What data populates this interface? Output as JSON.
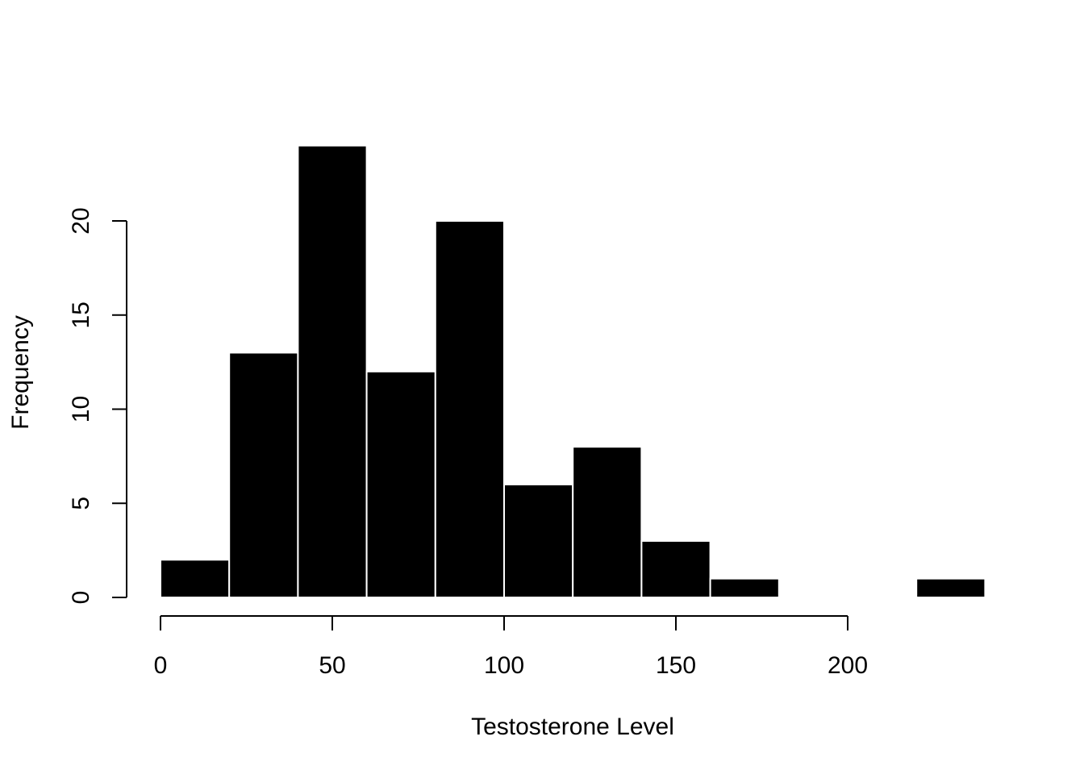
{
  "chart_data": {
    "type": "bar",
    "subtype": "histogram",
    "title": "",
    "xlabel": "Testosterone Level",
    "ylabel": "Frequency",
    "bins": [
      {
        "start": 0,
        "end": 20,
        "count": 2
      },
      {
        "start": 20,
        "end": 40,
        "count": 13
      },
      {
        "start": 40,
        "end": 60,
        "count": 24
      },
      {
        "start": 60,
        "end": 80,
        "count": 12
      },
      {
        "start": 80,
        "end": 100,
        "count": 20
      },
      {
        "start": 100,
        "end": 120,
        "count": 6
      },
      {
        "start": 120,
        "end": 140,
        "count": 8
      },
      {
        "start": 140,
        "end": 160,
        "count": 3
      },
      {
        "start": 160,
        "end": 180,
        "count": 1
      },
      {
        "start": 180,
        "end": 200,
        "count": 0
      },
      {
        "start": 200,
        "end": 220,
        "count": 0
      },
      {
        "start": 220,
        "end": 240,
        "count": 1
      }
    ],
    "x_ticks": [
      0,
      50,
      100,
      150,
      200
    ],
    "x_tick_labels": [
      "0",
      "50",
      "100",
      "150",
      "200"
    ],
    "y_ticks": [
      0,
      5,
      10,
      15,
      20
    ],
    "y_tick_labels": [
      "0",
      "5",
      "10",
      "15",
      "20"
    ],
    "xlim": [
      0,
      240
    ],
    "ylim": [
      0,
      24
    ],
    "grid": false,
    "bar_color": "#000000",
    "bar_border_color": "#ffffff"
  }
}
